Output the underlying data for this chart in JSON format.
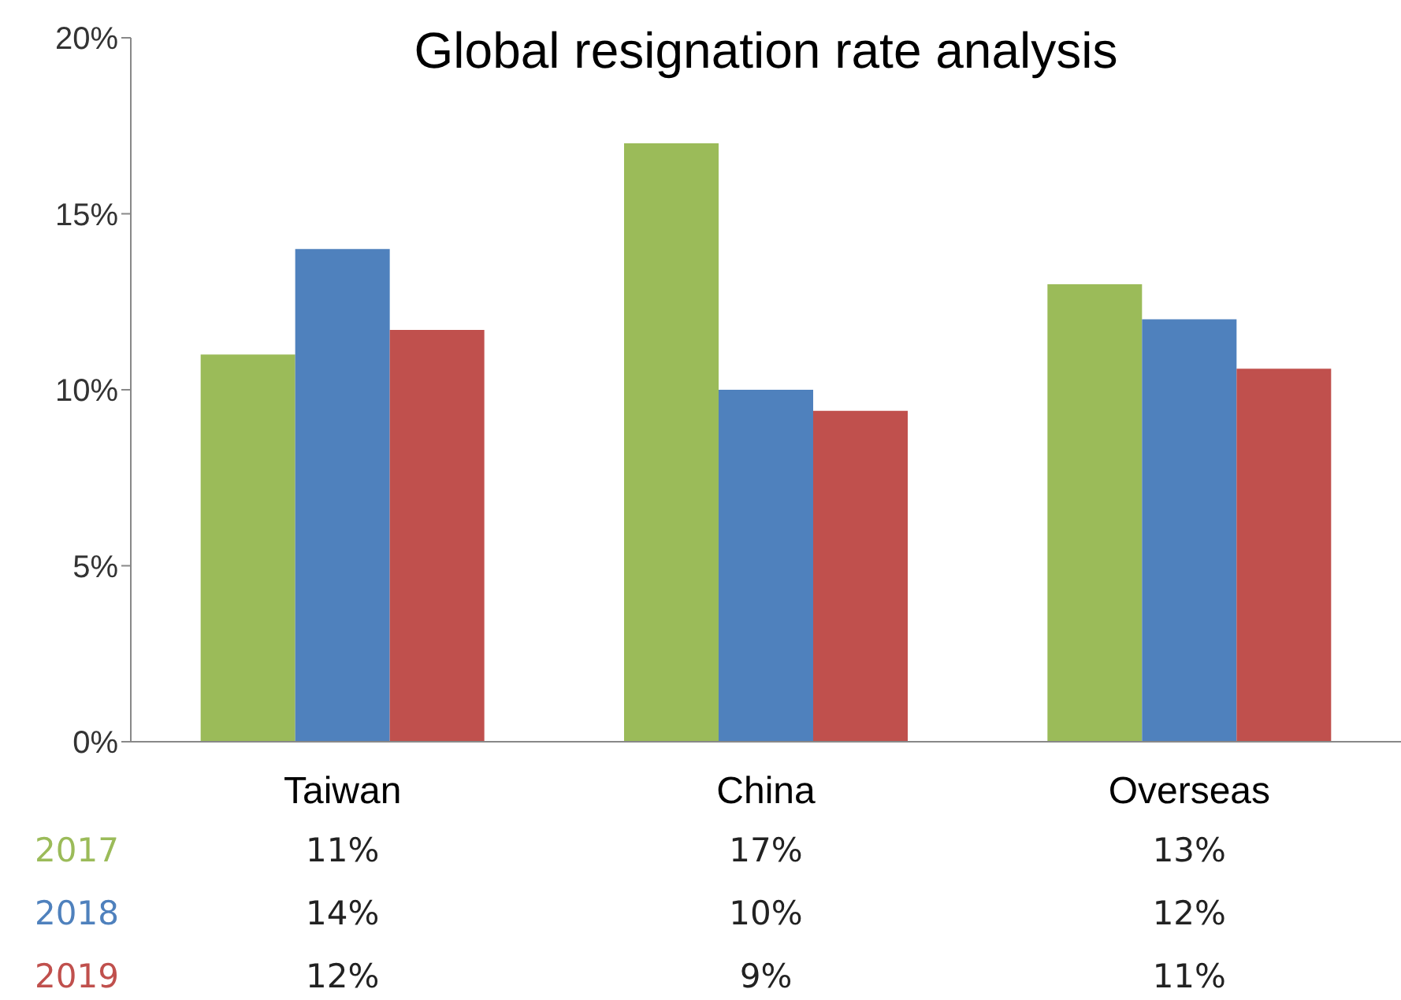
{
  "chart_data": {
    "type": "bar",
    "title": "Global resignation rate analysis",
    "categories": [
      "Taiwan",
      "China",
      "Overseas"
    ],
    "series": [
      {
        "name": "2017",
        "color": "#9bbb59",
        "values": [
          11,
          17,
          13
        ],
        "value_labels": [
          "11%",
          "17%",
          "13%"
        ]
      },
      {
        "name": "2018",
        "color": "#4f81bd",
        "values": [
          14,
          10,
          12
        ],
        "value_labels": [
          "14%",
          "10%",
          "12%"
        ]
      },
      {
        "name": "2019",
        "color": "#c0504d",
        "values": [
          11.7,
          9.4,
          10.6
        ],
        "value_labels": [
          "12%",
          "9%",
          "11%"
        ]
      }
    ],
    "ylim": [
      0,
      20
    ],
    "yticks": [
      {
        "value": 0,
        "label": "0%"
      },
      {
        "value": 5,
        "label": "5%"
      },
      {
        "value": 10,
        "label": "10%"
      },
      {
        "value": 15,
        "label": "15%"
      },
      {
        "value": 20,
        "label": "20%"
      }
    ],
    "grid": false,
    "legend": false
  }
}
